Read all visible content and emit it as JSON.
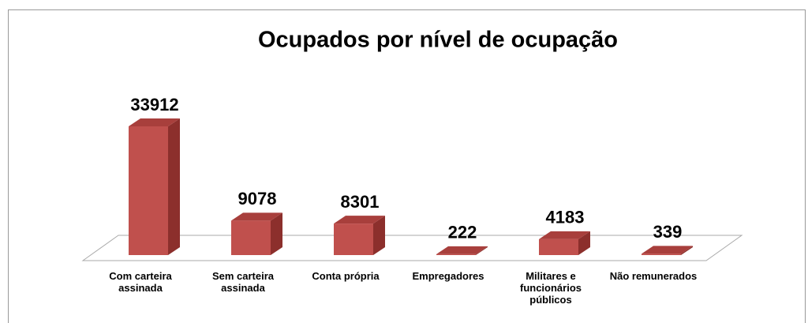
{
  "chart_data": {
    "type": "bar3d",
    "title": "Ocupados por nível de ocupação",
    "categories": [
      "Com carteira assinada",
      "Sem carteira assinada",
      "Conta própria",
      "Empregadores",
      "Militares e funcionários públicos",
      "Não remunerados"
    ],
    "values": [
      33912,
      9078,
      8301,
      222,
      4183,
      339
    ],
    "color": "#c0504d"
  }
}
